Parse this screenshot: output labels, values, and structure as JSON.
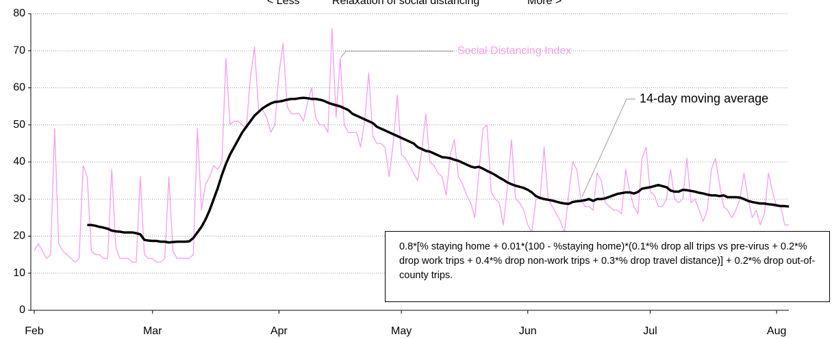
{
  "chart_data": {
    "type": "line",
    "header": [
      "<  Less",
      "Relaxation of social distancing",
      "More  >"
    ],
    "formula": "0.8*[% staying home + 0.01*(100 - %staying home)*(0.1*% drop all trips vs pre-virus + 0.2*% drop work trips + 0.4*% drop non-work trips + 0.3*% drop travel distance)] + 0.2*% drop out-of-county trips.",
    "categories": [
      "Feb",
      null,
      null,
      null,
      null,
      null,
      null,
      null,
      null,
      null,
      null,
      null,
      null,
      null,
      null,
      null,
      null,
      null,
      null,
      null,
      null,
      null,
      null,
      null,
      null,
      null,
      null,
      null,
      null,
      "Mar",
      null,
      null,
      null,
      null,
      null,
      null,
      null,
      null,
      null,
      null,
      null,
      null,
      null,
      null,
      null,
      null,
      null,
      null,
      null,
      null,
      null,
      null,
      null,
      null,
      null,
      null,
      null,
      null,
      null,
      null,
      "Apr",
      null,
      null,
      null,
      null,
      null,
      null,
      null,
      null,
      null,
      null,
      null,
      null,
      null,
      null,
      null,
      null,
      null,
      null,
      null,
      null,
      null,
      null,
      null,
      null,
      null,
      null,
      null,
      null,
      null,
      "May",
      null,
      null,
      null,
      null,
      null,
      null,
      null,
      null,
      null,
      null,
      null,
      null,
      null,
      null,
      null,
      null,
      null,
      null,
      null,
      null,
      null,
      null,
      null,
      null,
      null,
      null,
      null,
      null,
      null,
      null,
      "Jun",
      null,
      null,
      null,
      null,
      null,
      null,
      null,
      null,
      null,
      null,
      null,
      null,
      null,
      null,
      null,
      null,
      null,
      null,
      null,
      null,
      null,
      null,
      null,
      null,
      null,
      null,
      null,
      null,
      null,
      "Jul",
      null,
      null,
      null,
      null,
      null,
      null,
      null,
      null,
      null,
      null,
      null,
      null,
      null,
      null,
      null,
      null,
      null,
      null,
      null,
      null,
      null,
      null,
      null,
      null,
      null,
      null,
      null,
      null,
      null,
      null,
      "Aug",
      null,
      null,
      null
    ],
    "series": [
      {
        "name": "Social Distancing Index",
        "color": "#f79cf0",
        "width": 1.3,
        "values": [
          16,
          18,
          16,
          14,
          15,
          49,
          18,
          16,
          15,
          14,
          13,
          14,
          39,
          36,
          16,
          15,
          15,
          14,
          14,
          38,
          17,
          14,
          14,
          14,
          13,
          13,
          36,
          15,
          14,
          14,
          13,
          13,
          14,
          36,
          16,
          14,
          14,
          14,
          14,
          15,
          49,
          27,
          34,
          36,
          39,
          38,
          40,
          68,
          50,
          51,
          51,
          50,
          49,
          63,
          71,
          54,
          54,
          52,
          48,
          50,
          64,
          72,
          55,
          53,
          53,
          53,
          51,
          56,
          60,
          52,
          50,
          50,
          48,
          76,
          52,
          68,
          50,
          48,
          48,
          48,
          44,
          51,
          64,
          47,
          45,
          45,
          44,
          36,
          45,
          58,
          42,
          41,
          39,
          37,
          35,
          43,
          53,
          40,
          39,
          37,
          36,
          31,
          42,
          46,
          36,
          34,
          31,
          29,
          25,
          37,
          49,
          50,
          32,
          30,
          29,
          23,
          33,
          46,
          30,
          29,
          27,
          23,
          21,
          30,
          30,
          44,
          30,
          28,
          26,
          24,
          21,
          31,
          40,
          38,
          30,
          28,
          28,
          27,
          37,
          35,
          29,
          28,
          27,
          27,
          26,
          38,
          32,
          28,
          26,
          41,
          44,
          32,
          31,
          28,
          28,
          30,
          38,
          30,
          29,
          30,
          41,
          29,
          30,
          27,
          24,
          27,
          38,
          41,
          34,
          28,
          27,
          25,
          27,
          30,
          37,
          30,
          25,
          27,
          23,
          26,
          37,
          32,
          28,
          28,
          23,
          23
        ]
      },
      {
        "name": "14-day moving average",
        "color": "#000000",
        "width": 3.5,
        "values": [
          null,
          null,
          null,
          null,
          null,
          null,
          null,
          null,
          null,
          null,
          null,
          null,
          null,
          23,
          23,
          22.8,
          22.5,
          22.3,
          22,
          21.5,
          21.3,
          21.2,
          21,
          21,
          21,
          20.8,
          20.5,
          19,
          18.8,
          18.7,
          18.7,
          18.5,
          18.5,
          18.3,
          18.4,
          18.5,
          18.5,
          18.5,
          18.6,
          19.5,
          21,
          22.5,
          24.5,
          27,
          30,
          33,
          36.5,
          39.5,
          42,
          44,
          46,
          48,
          49.5,
          51,
          52.5,
          53.5,
          54.5,
          55.2,
          55.8,
          56.2,
          56.3,
          56.5,
          56.8,
          57,
          57,
          57.2,
          57.3,
          57.2,
          57,
          57,
          56.8,
          56.5,
          56,
          55.6,
          55.3,
          55,
          54.5,
          54,
          53,
          52.5,
          52,
          51.5,
          51,
          50.5,
          49.5,
          49,
          48.5,
          48,
          47.5,
          47,
          46.5,
          46,
          45.5,
          45,
          44,
          43.5,
          43,
          42.8,
          42.3,
          41.8,
          41.3,
          41.2,
          41,
          40.6,
          40.3,
          39.8,
          39.3,
          38.8,
          38.5,
          38.7,
          38.2,
          37.6,
          37.1,
          36.5,
          35.8,
          35.2,
          34.5,
          34,
          33.6,
          33.3,
          33,
          32.5,
          31.8,
          30.8,
          30.3,
          30,
          29.8,
          29.6,
          29.3,
          29,
          28.8,
          28.7,
          29.2,
          29.4,
          29.5,
          29.7,
          30,
          29.5,
          30,
          30,
          30.2,
          30.6,
          31,
          31.4,
          31.6,
          31.8,
          31.8,
          31.5,
          31.9,
          32.8,
          33,
          33.2,
          33.5,
          33.8,
          33.5,
          33.2,
          32.3,
          32,
          32,
          32.5,
          32.4,
          32.2,
          32,
          31.7,
          31.5,
          31.2,
          31,
          31,
          30.8,
          31,
          30.5,
          30.5,
          30.5,
          30.4,
          30,
          29.5,
          29.2,
          29,
          28.8,
          28.8,
          28.6,
          28.5,
          28.3,
          28.1,
          28.1,
          28
        ]
      }
    ],
    "ylim": [
      0,
      80
    ],
    "yticks": [
      0,
      10,
      20,
      30,
      40,
      50,
      60,
      70,
      80
    ],
    "grid": true
  }
}
